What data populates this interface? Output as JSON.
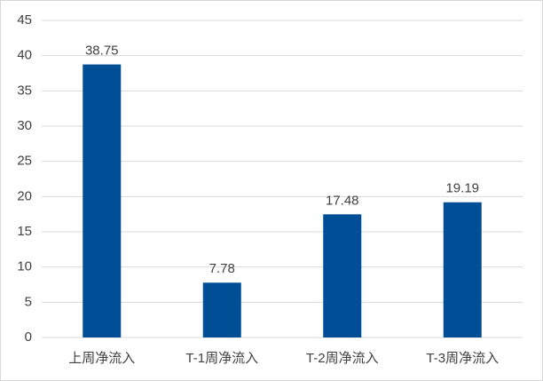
{
  "chart_data": {
    "type": "bar",
    "categories": [
      "上周净流入",
      "T-1周净流入",
      "T-2周净流入",
      "T-3周净流入"
    ],
    "values": [
      38.75,
      7.78,
      17.48,
      19.19
    ],
    "color": "#004f96",
    "ylim": [
      0,
      45
    ],
    "yticks": [
      0,
      5,
      10,
      15,
      20,
      25,
      30,
      35,
      40,
      45
    ],
    "grid": true
  }
}
